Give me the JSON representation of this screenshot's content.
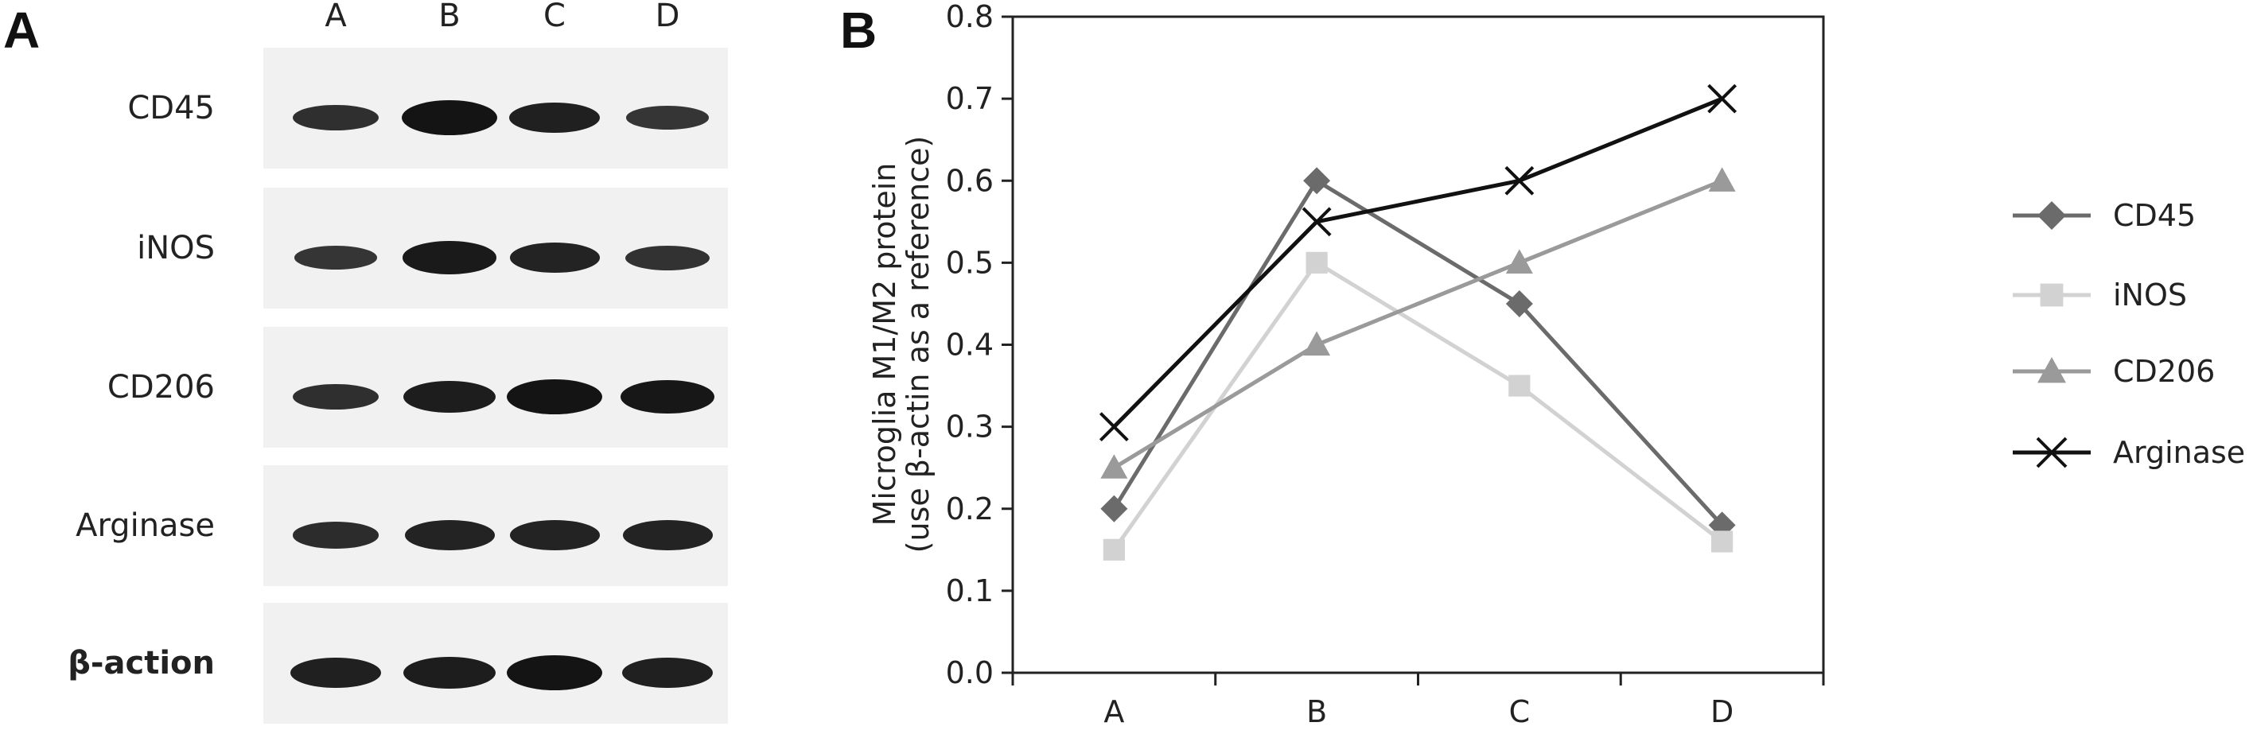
{
  "panel_a": {
    "letter": "A",
    "lanes": [
      "A",
      "B",
      "C",
      "D"
    ],
    "rows": [
      {
        "label": "CD45",
        "bold": false,
        "intensity": [
          0.55,
          1.0,
          0.8,
          0.45
        ]
      },
      {
        "label": "iNOS",
        "bold": false,
        "intensity": [
          0.45,
          0.9,
          0.75,
          0.5
        ]
      },
      {
        "label": "CD206",
        "bold": false,
        "intensity": [
          0.55,
          0.85,
          1.0,
          0.95
        ]
      },
      {
        "label": "Arginase",
        "bold": false,
        "intensity": [
          0.6,
          0.75,
          0.75,
          0.75
        ]
      },
      {
        "label": "β-action",
        "bold": true,
        "intensity": [
          0.8,
          0.85,
          1.0,
          0.8
        ]
      }
    ]
  },
  "panel_b": {
    "letter": "B"
  },
  "chart_data": {
    "type": "line",
    "title": "",
    "xlabel": "",
    "ylabel_lines": [
      "Microglia M1/M2 protein",
      "(use β-actin as a reference)"
    ],
    "categories": [
      "A",
      "B",
      "C",
      "D"
    ],
    "ylim": [
      0.0,
      0.8
    ],
    "yticks": [
      "0.0",
      "0.1",
      "0.2",
      "0.3",
      "0.4",
      "0.5",
      "0.6",
      "0.7",
      "0.8"
    ],
    "legend_position": "right",
    "grid": false,
    "series": [
      {
        "name": "CD45",
        "values": [
          0.2,
          0.6,
          0.45,
          0.18
        ],
        "marker": "diamond",
        "color": "#6b6b6b"
      },
      {
        "name": "iNOS",
        "values": [
          0.15,
          0.5,
          0.35,
          0.16
        ],
        "marker": "square",
        "color": "#d2d2d2"
      },
      {
        "name": "CD206",
        "values": [
          0.25,
          0.4,
          0.5,
          0.6
        ],
        "marker": "triangle",
        "color": "#9a9a9a"
      },
      {
        "name": "Arginase",
        "values": [
          0.3,
          0.55,
          0.6,
          0.7
        ],
        "marker": "x",
        "color": "#111111"
      }
    ]
  }
}
